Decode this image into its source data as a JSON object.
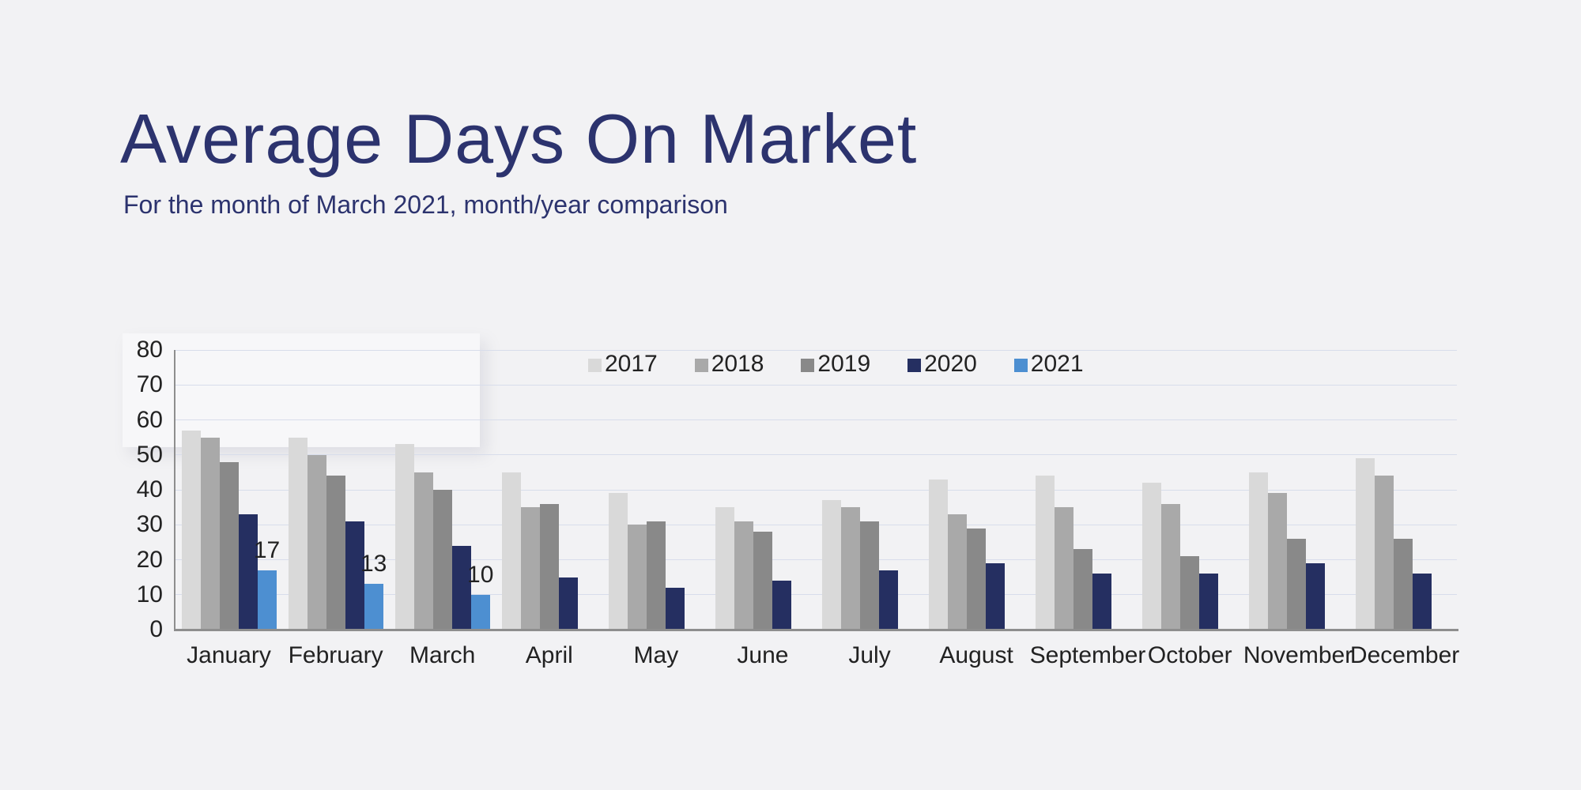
{
  "colors": {
    "background": "#f2f2f4",
    "title_text": "#2c336e",
    "axis_text": "#222222",
    "gridline": "#d8ddeb",
    "axis_line": "#8e8e8e",
    "panel": "#f7f7f9"
  },
  "chart_data": {
    "type": "bar",
    "title": "Average Days On Market",
    "subtitle": "For the month of March 2021, month/year comparison",
    "categories": [
      "January",
      "February",
      "March",
      "April",
      "May",
      "June",
      "July",
      "August",
      "September",
      "October",
      "November",
      "December"
    ],
    "series": [
      {
        "name": "2017",
        "color": "#d9d9d9",
        "values": [
          57,
          55,
          53,
          45,
          39,
          35,
          37,
          43,
          44,
          42,
          45,
          49
        ]
      },
      {
        "name": "2018",
        "color": "#a9a9a9",
        "values": [
          55,
          50,
          45,
          35,
          30,
          31,
          35,
          33,
          35,
          36,
          39,
          44
        ]
      },
      {
        "name": "2019",
        "color": "#898989",
        "values": [
          48,
          44,
          40,
          36,
          31,
          28,
          31,
          29,
          23,
          21,
          26,
          26
        ]
      },
      {
        "name": "2020",
        "color": "#252f61",
        "values": [
          33,
          31,
          24,
          15,
          12,
          14,
          17,
          19,
          16,
          16,
          19,
          16
        ]
      },
      {
        "name": "2021",
        "color": "#4d8fd1",
        "values": [
          17,
          13,
          10,
          null,
          null,
          null,
          null,
          null,
          null,
          null,
          null,
          null
        ],
        "data_labels": [
          "17",
          "13",
          "10"
        ]
      }
    ],
    "ylim": [
      0,
      80
    ],
    "ytick_step": 10,
    "yticks": [
      "0",
      "10",
      "20",
      "30",
      "40",
      "50",
      "60",
      "70",
      "80"
    ],
    "grid": "horizontal",
    "legend_position": "top-center"
  }
}
